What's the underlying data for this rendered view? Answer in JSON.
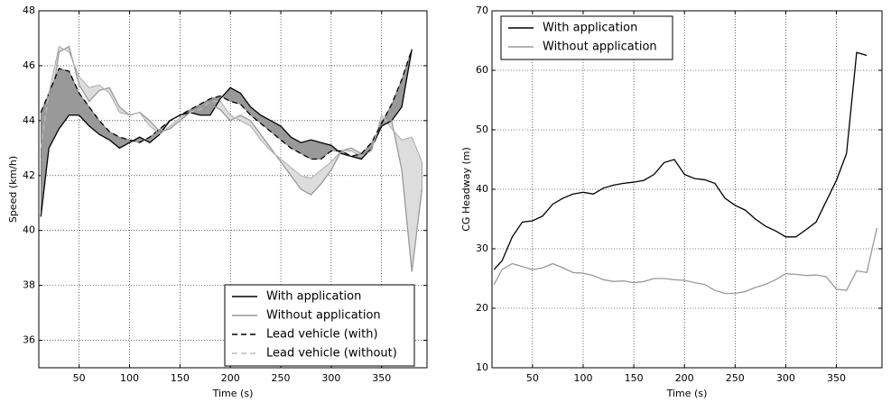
{
  "chart_data": [
    {
      "type": "line",
      "xlabel": "Time (s)",
      "ylabel": "Speed (km/h)",
      "x": [
        12,
        20,
        30,
        40,
        50,
        60,
        70,
        80,
        90,
        100,
        110,
        120,
        130,
        140,
        150,
        160,
        170,
        180,
        190,
        200,
        210,
        220,
        230,
        240,
        250,
        260,
        270,
        280,
        290,
        300,
        310,
        320,
        330,
        340,
        350,
        360,
        370,
        380,
        390
      ],
      "series": [
        {
          "name": "With application",
          "color": "#000000",
          "dash": false,
          "values": [
            40.5,
            43,
            43.7,
            44.2,
            44.2,
            43.8,
            43.5,
            43.3,
            43.0,
            43.2,
            43.4,
            43.2,
            43.5,
            44.0,
            44.2,
            44.3,
            44.2,
            44.2,
            44.8,
            45.2,
            45.0,
            44.5,
            44.2,
            44.0,
            43.8,
            43.4,
            43.2,
            43.3,
            43.2,
            43.1,
            42.8,
            42.7,
            42.6,
            43.0,
            43.8,
            44.0,
            44.5,
            46.6,
            null
          ]
        },
        {
          "name": "Without application",
          "color": "#999999",
          "dash": false,
          "values": [
            42.5,
            44,
            46.5,
            46.7,
            45.3,
            44.7,
            45.1,
            45.2,
            44.5,
            44.2,
            44.3,
            44.0,
            43.6,
            43.7,
            44.0,
            44.3,
            44.5,
            44.6,
            44.4,
            44.0,
            44.2,
            44.0,
            43.5,
            43.0,
            42.5,
            42.0,
            41.5,
            41.3,
            41.7,
            42.2,
            42.9,
            43.0,
            42.8,
            43.0,
            44.0,
            44.0,
            42.2,
            38.5,
            41.5
          ]
        },
        {
          "name": "Lead vehicle (with)",
          "color": "#000000",
          "dash": true,
          "values": [
            44.3,
            45.0,
            45.9,
            45.8,
            45.0,
            44.5,
            44.0,
            43.6,
            43.4,
            43.3,
            43.2,
            43.4,
            43.7,
            44.0,
            44.2,
            44.4,
            44.6,
            44.8,
            44.9,
            44.7,
            44.6,
            44.2,
            43.9,
            43.6,
            43.3,
            43.0,
            42.8,
            42.6,
            42.6,
            42.9,
            42.9,
            42.7,
            42.8,
            43.2,
            43.9,
            44.6,
            45.5,
            46.6,
            null
          ]
        },
        {
          "name": "Lead vehicle (without)",
          "color": "#bbbbbb",
          "dash": true,
          "values": [
            43,
            45,
            46.7,
            46.5,
            45.6,
            45.2,
            45.3,
            45.0,
            44.3,
            44.2,
            44.3,
            43.8,
            43.5,
            43.8,
            44.1,
            44.3,
            44.4,
            44.7,
            44.7,
            44.2,
            44.0,
            43.8,
            43.3,
            42.9,
            42.6,
            42.3,
            42.0,
            41.9,
            42.2,
            42.5,
            42.9,
            42.9,
            42.7,
            42.9,
            44.2,
            43.7,
            43.3,
            43.4,
            42.5
          ]
        }
      ],
      "fills": [
        {
          "series": [
            1,
            3
          ],
          "color": "#dddddd"
        },
        {
          "series": [
            0,
            2
          ],
          "color": "#999999"
        }
      ],
      "xlim": [
        10,
        395
      ],
      "xticks": [
        50,
        100,
        150,
        200,
        250,
        300,
        350
      ],
      "ylim": [
        35,
        48
      ],
      "yticks": [
        36,
        38,
        40,
        42,
        44,
        46,
        48
      ],
      "grid": true,
      "legend": "lower right"
    },
    {
      "type": "line",
      "xlabel": "Time (s)",
      "ylabel": "CG Headway (m)",
      "x": [
        12,
        20,
        30,
        40,
        50,
        60,
        70,
        80,
        90,
        100,
        110,
        120,
        130,
        140,
        150,
        160,
        170,
        180,
        190,
        200,
        210,
        220,
        230,
        240,
        250,
        260,
        270,
        280,
        290,
        300,
        310,
        320,
        330,
        340,
        350,
        360,
        370,
        380,
        390
      ],
      "series": [
        {
          "name": "With application",
          "color": "#000000",
          "dash": false,
          "values": [
            26.5,
            28,
            32,
            34.5,
            34.7,
            35.5,
            37.5,
            38.5,
            39.2,
            39.5,
            39.2,
            40.2,
            40.7,
            41.0,
            41.2,
            41.5,
            42.5,
            44.5,
            45.0,
            42.5,
            41.8,
            41.6,
            41.0,
            38.5,
            37.3,
            36.5,
            35.0,
            33.8,
            33.0,
            32.0,
            32.0,
            33.2,
            34.5,
            38.0,
            41.5,
            46,
            63,
            62.5,
            null
          ]
        },
        {
          "name": "Without application",
          "color": "#999999",
          "dash": false,
          "values": [
            24,
            26.5,
            27.5,
            27.0,
            26.5,
            26.8,
            27.5,
            26.8,
            26.0,
            25.9,
            25.5,
            24.8,
            24.5,
            24.6,
            24.3,
            24.5,
            25.0,
            25.0,
            24.8,
            24.7,
            24.3,
            24.0,
            23.0,
            22.5,
            22.5,
            22.8,
            23.5,
            24.0,
            24.8,
            25.8,
            25.7,
            25.5,
            25.6,
            25.3,
            23.2,
            23.0,
            26.3,
            26.0,
            33.5
          ]
        }
      ],
      "xlim": [
        10,
        395
      ],
      "xticks": [
        50,
        100,
        150,
        200,
        250,
        300,
        350
      ],
      "ylim": [
        10,
        70
      ],
      "yticks": [
        10,
        20,
        30,
        40,
        50,
        60,
        70
      ],
      "grid": true,
      "legend": "upper left"
    }
  ]
}
